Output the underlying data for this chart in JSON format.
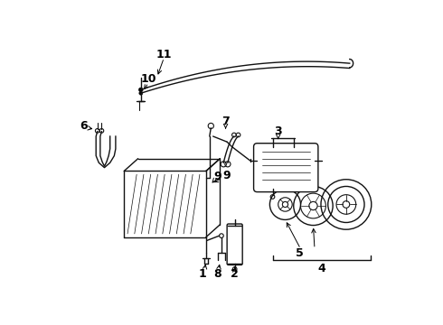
{
  "bg_color": "#ffffff",
  "line_color": "#111111",
  "fig_width": 4.9,
  "fig_height": 3.6,
  "dpi": 100
}
